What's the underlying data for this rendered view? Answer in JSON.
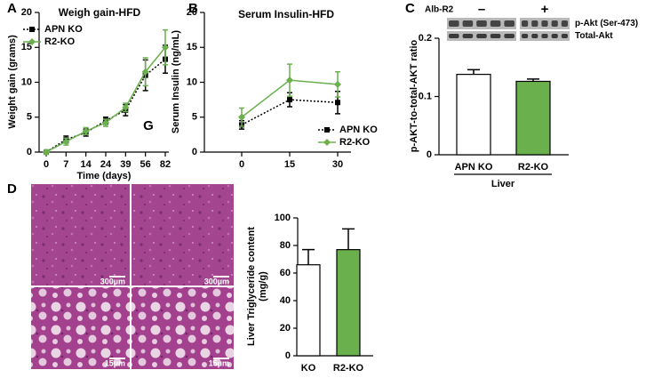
{
  "chart_data": [
    {
      "type": "line",
      "panel": "A",
      "title": "Weigh gain-HFD",
      "xlabel": "Time (days)",
      "ylabel": "Weight gain (grams)",
      "categories": [
        "0",
        "7",
        "14",
        "24",
        "39",
        "56",
        "82"
      ],
      "series": [
        {
          "name": "APN KO",
          "color": "#000000",
          "linestyle": "dotted",
          "marker": "square",
          "values": [
            0,
            1.8,
            2.8,
            4.5,
            6.0,
            11.0,
            13.3
          ],
          "errors": [
            0.3,
            0.5,
            0.5,
            0.5,
            0.8,
            2.2,
            2.0
          ]
        },
        {
          "name": "R2-KO",
          "color": "#6ab04c",
          "linestyle": "solid",
          "marker": "diamond",
          "values": [
            0,
            1.5,
            3.0,
            4.2,
            6.4,
            11.5,
            15.0
          ],
          "errors": [
            0.3,
            0.5,
            0.5,
            0.5,
            0.6,
            2.0,
            2.5
          ]
        }
      ],
      "ylim": [
        0,
        20
      ],
      "yticks": [
        0,
        5,
        10,
        15,
        20
      ],
      "legend": "upper left",
      "annotation": "G"
    },
    {
      "type": "line",
      "panel": "B",
      "title": "Serum Insulin-HFD",
      "ylabel": "Serum Insulin (ng/mL)",
      "categories": [
        "0",
        "15",
        "30"
      ],
      "series": [
        {
          "name": "APN KO",
          "color": "#000000",
          "linestyle": "dotted",
          "marker": "square",
          "values": [
            3.9,
            7.5,
            7.1
          ],
          "errors": [
            0.6,
            1.0,
            1.6
          ]
        },
        {
          "name": "R2-KO",
          "color": "#6ab04c",
          "linestyle": "solid",
          "marker": "diamond",
          "values": [
            5.0,
            10.3,
            9.7
          ],
          "errors": [
            1.3,
            2.3,
            1.8
          ]
        }
      ],
      "ylim": [
        0,
        20
      ],
      "yticks": [
        0,
        5,
        10,
        15,
        20
      ],
      "legend": "lower right"
    },
    {
      "type": "bar",
      "panel": "C",
      "ylabel": "p-AKT-to-total-AKT ratio",
      "categories": [
        "APN KO",
        "R2-KO"
      ],
      "colors": [
        "#ffffff",
        "#6ab04c"
      ],
      "values": [
        0.138,
        0.126
      ],
      "errors": [
        0.008,
        0.004
      ],
      "ylim": [
        0,
        0.2
      ],
      "yticks": [
        0,
        0.1,
        0.2
      ],
      "group_label": "Liver",
      "blot": {
        "label": "Alb-R2",
        "lanes": [
          "–",
          "+"
        ],
        "bands": [
          "p-Akt (Ser-473)",
          "Total-Akt"
        ]
      }
    },
    {
      "type": "bar",
      "panel": "D",
      "ylabel": [
        "Liver Triglyceride content",
        "(mg/g)"
      ],
      "categories": [
        "KO",
        "R2-KO"
      ],
      "colors": [
        "#ffffff",
        "#6ab04c"
      ],
      "values": [
        66,
        77
      ],
      "errors": [
        11,
        15
      ],
      "ylim": [
        0,
        100
      ],
      "yticks": [
        0,
        20,
        40,
        60,
        80,
        100
      ],
      "images": {
        "scale_labels": [
          "300µm",
          "300µm",
          "15µm",
          "15µm"
        ]
      }
    }
  ]
}
